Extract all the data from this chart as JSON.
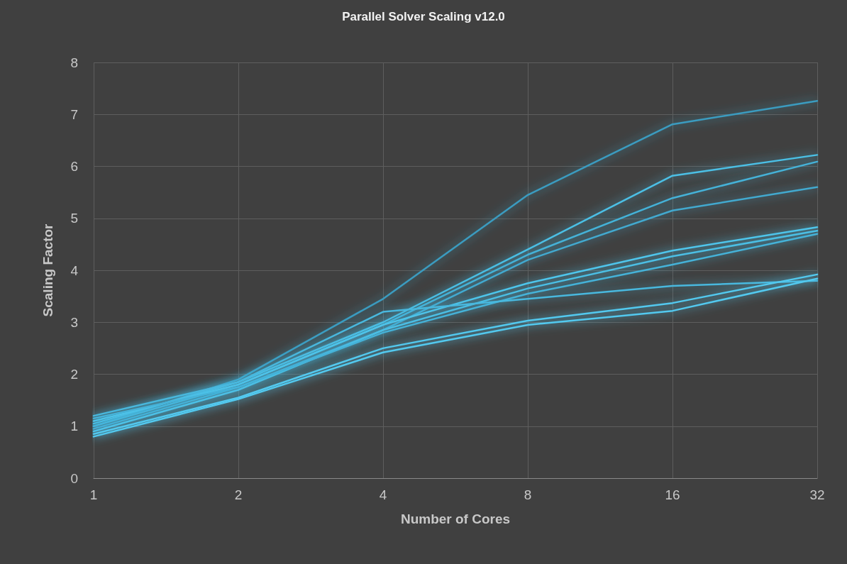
{
  "chart_data": {
    "type": "line",
    "title": "Parallel Solver Scaling v12.0",
    "xlabel": "Number of Cores",
    "ylabel": "Scaling Factor",
    "categories": [
      "1",
      "2",
      "4",
      "8",
      "16",
      "32"
    ],
    "ylim": [
      0,
      8
    ],
    "yticks": [
      0,
      1,
      2,
      3,
      4,
      5,
      6,
      7,
      8
    ],
    "grid": true,
    "marker": "none",
    "line_style": "solid",
    "series": [
      {
        "color": "#3a9cc0",
        "values": [
          1.0,
          1.9,
          3.45,
          5.45,
          6.81,
          7.26
        ]
      },
      {
        "color": "#4cc0e6",
        "values": [
          1.05,
          1.85,
          3.0,
          4.4,
          5.82,
          6.22
        ]
      },
      {
        "color": "#45b2d8",
        "values": [
          1.0,
          1.8,
          2.95,
          4.3,
          5.39,
          6.09
        ]
      },
      {
        "color": "#42a9cf",
        "values": [
          0.95,
          1.75,
          2.85,
          4.2,
          5.15,
          5.6
        ]
      },
      {
        "color": "#4fc6ec",
        "values": [
          1.1,
          1.8,
          2.95,
          3.75,
          4.38,
          4.83
        ]
      },
      {
        "color": "#4cc0e6",
        "values": [
          0.9,
          1.7,
          2.85,
          3.65,
          4.27,
          4.76
        ]
      },
      {
        "color": "#45b2d8",
        "values": [
          1.15,
          1.75,
          2.8,
          3.55,
          4.11,
          4.7
        ]
      },
      {
        "color": "#48b8de",
        "values": [
          1.2,
          1.85,
          3.2,
          3.45,
          3.7,
          3.8
        ]
      },
      {
        "color": "#52c9ef",
        "values": [
          0.85,
          1.55,
          2.5,
          3.03,
          3.37,
          3.92
        ]
      },
      {
        "color": "#52c9ef",
        "values": [
          0.8,
          1.52,
          2.42,
          2.95,
          3.22,
          3.84
        ]
      }
    ]
  }
}
